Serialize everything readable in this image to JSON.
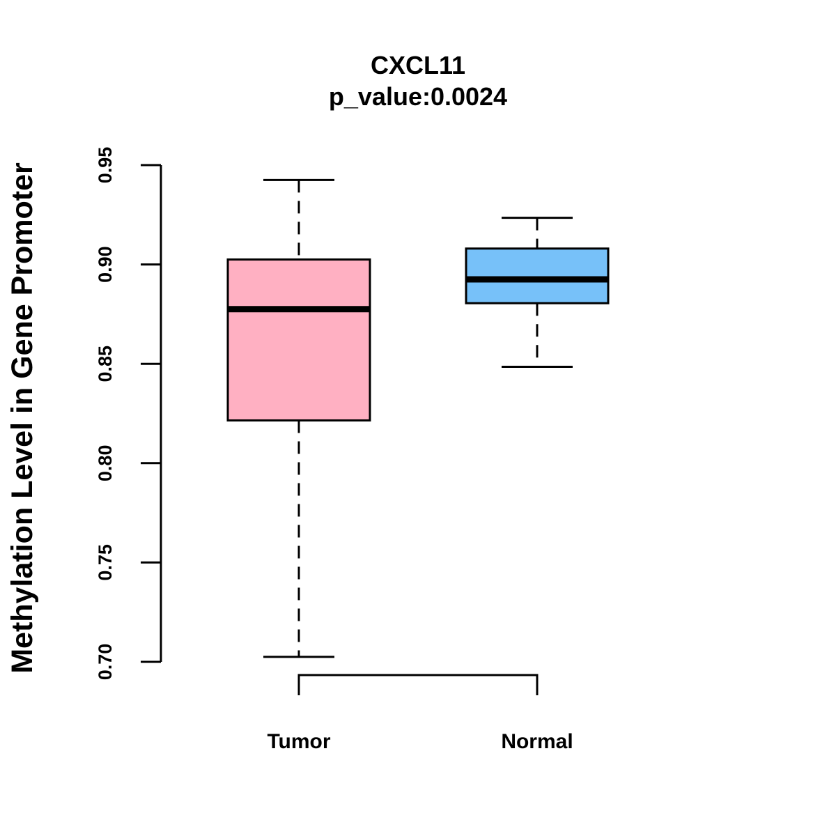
{
  "chart_data": {
    "type": "boxplot",
    "title": "CXCL11",
    "subtitle": "p_value:0.0024",
    "xlabel": "",
    "ylabel": "Methylation Level in Gene Promoter",
    "ylim": [
      0.7,
      0.95
    ],
    "yticks": [
      "0.70",
      "0.75",
      "0.80",
      "0.85",
      "0.90",
      "0.95"
    ],
    "categories": [
      "Tumor",
      "Normal"
    ],
    "series": [
      {
        "name": "Tumor",
        "whisker_low": 0.7025,
        "q1": 0.8215,
        "median": 0.8775,
        "q3": 0.9025,
        "whisker_high": 0.9425,
        "color": "#FFB0C2"
      },
      {
        "name": "Normal",
        "whisker_low": 0.8485,
        "q1": 0.8805,
        "median": 0.8925,
        "q3": 0.908,
        "whisker_high": 0.9235,
        "color": "#77C1F9"
      }
    ],
    "significance_bracket": {
      "from": "Tumor",
      "to": "Normal",
      "label": ""
    }
  }
}
